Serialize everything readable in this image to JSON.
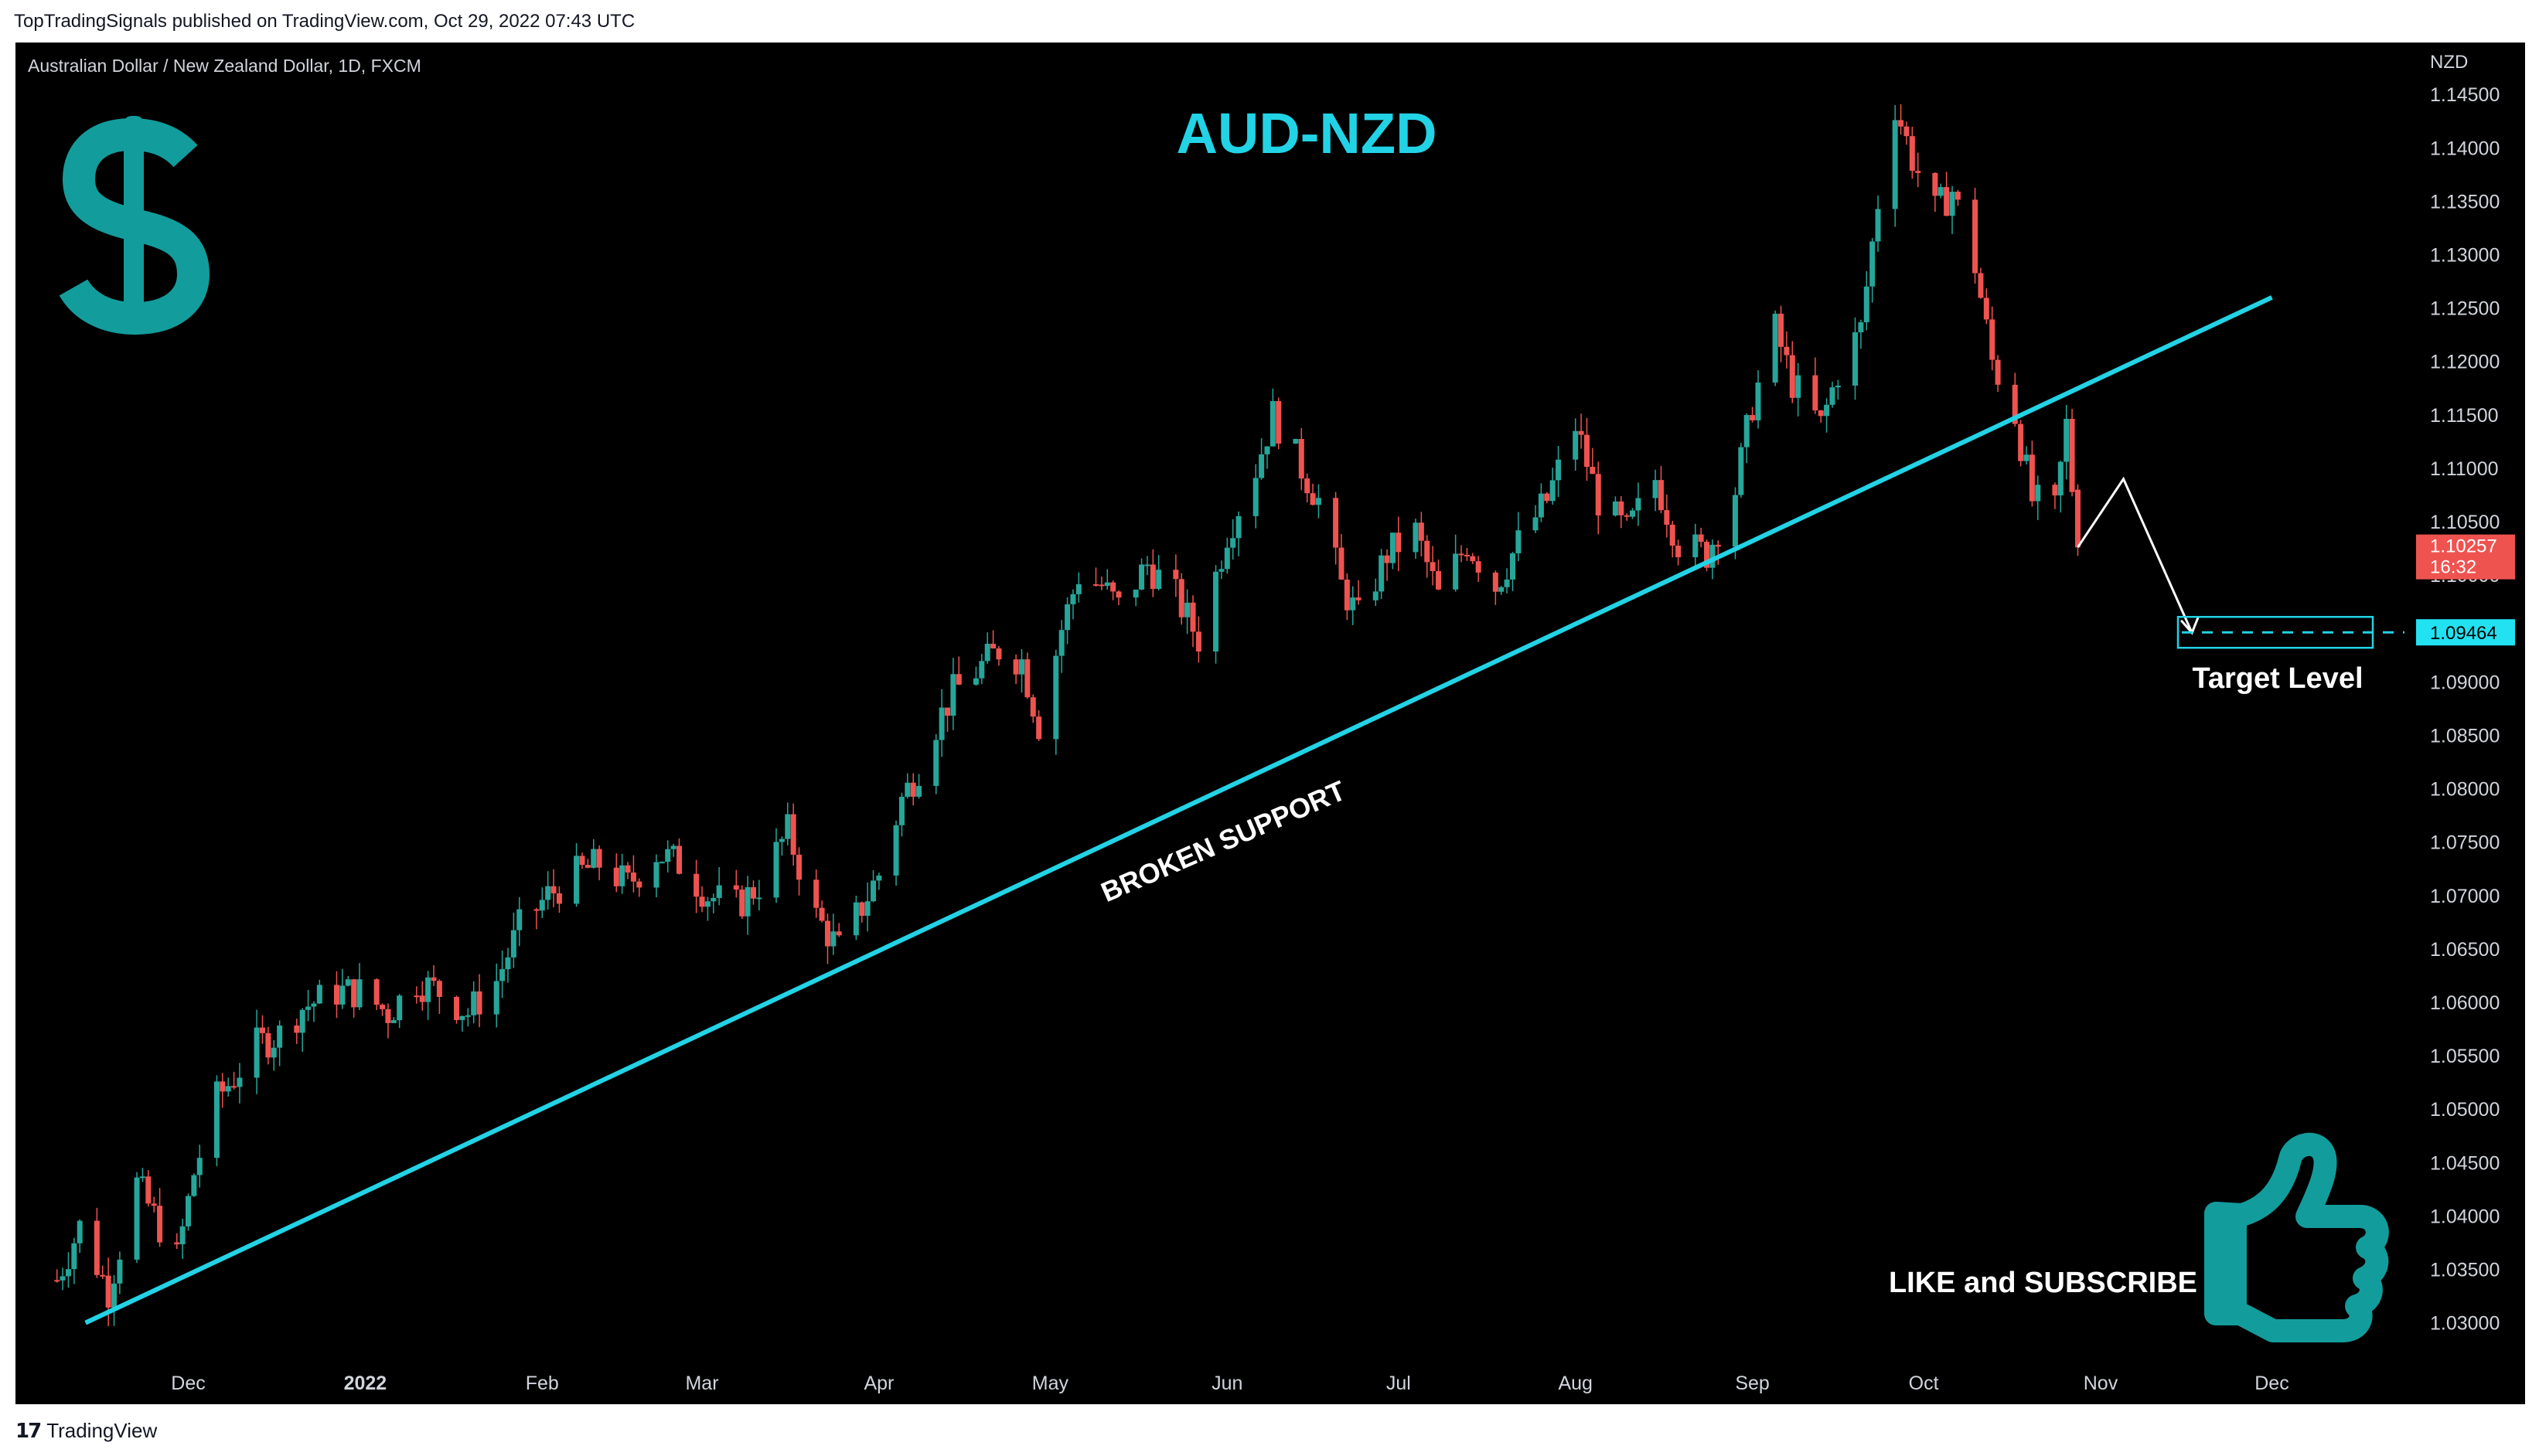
{
  "header": {
    "published_line": "TopTradingSignals published on TradingView.com, Oct 29, 2022 07:43 UTC",
    "symbol_line": "Australian Dollar / New Zealand Dollar, 1D, FXCM"
  },
  "footer": {
    "brand_label": "TradingView",
    "brand_icon": "tradingview-logo-icon"
  },
  "annotations": {
    "title": "AUD-NZD",
    "broken_support_label": "BROKEN SUPPORT",
    "target_label": "Target Level",
    "like_label": "LIKE and SUBSCRIBE",
    "dollar_icon": "dollar-sign-icon",
    "thumb_icon": "thumbs-up-icon"
  },
  "colors": {
    "background": "#000000",
    "up": "#26a69a",
    "down": "#ef5350",
    "line": "#22d3e6",
    "title": "#22d3e6",
    "teal_icon": "#139c9c",
    "axis_text": "#d1d4dc",
    "price_badge": "#ef5350",
    "target_badge": "#22e1f0"
  },
  "axis": {
    "currency_label": "NZD",
    "price_badge": {
      "value": "1.10257",
      "countdown": "16:32"
    },
    "target_badge": "1.09464"
  },
  "chart_data": {
    "type": "candlestick",
    "title": "AUD-NZD",
    "symbol": "Australian Dollar / New Zealand Dollar, 1D, FXCM",
    "ylabel": "NZD",
    "ylim": [
      1.0265,
      1.1495
    ],
    "y_ticks": [
      "1.14500",
      "1.14000",
      "1.13500",
      "1.13000",
      "1.12500",
      "1.12000",
      "1.11500",
      "1.11000",
      "1.10500",
      "1.10000",
      "1.09500",
      "1.09000",
      "1.08500",
      "1.08000",
      "1.07500",
      "1.07000",
      "1.06500",
      "1.06000",
      "1.05500",
      "1.05000",
      "1.04500",
      "1.04000",
      "1.03500",
      "1.03000"
    ],
    "x_ticks": [
      {
        "label": "Dec",
        "date": "2021-12-01"
      },
      {
        "label": "2022",
        "date": "2022-01-01"
      },
      {
        "label": "Feb",
        "date": "2022-02-01"
      },
      {
        "label": "Mar",
        "date": "2022-03-01"
      },
      {
        "label": "Apr",
        "date": "2022-04-01"
      },
      {
        "label": "May",
        "date": "2022-05-01"
      },
      {
        "label": "Jun",
        "date": "2022-06-01"
      },
      {
        "label": "Jul",
        "date": "2022-07-01"
      },
      {
        "label": "Aug",
        "date": "2022-08-01"
      },
      {
        "label": "Sep",
        "date": "2022-09-01"
      },
      {
        "label": "Oct",
        "date": "2022-10-01"
      },
      {
        "label": "Nov",
        "date": "2022-11-01"
      },
      {
        "label": "Dec",
        "date": "2022-12-01"
      }
    ],
    "close_series": [
      [
        "2021-11-08",
        1.034
      ],
      [
        "2021-11-12",
        1.039
      ],
      [
        "2021-11-17",
        1.033
      ],
      [
        "2021-11-22",
        1.043
      ],
      [
        "2021-11-26",
        1.039
      ],
      [
        "2021-11-29",
        1.036
      ],
      [
        "2021-12-02",
        1.044
      ],
      [
        "2021-12-06",
        1.051
      ],
      [
        "2021-12-09",
        1.053
      ],
      [
        "2021-12-13",
        1.056
      ],
      [
        "2021-12-17",
        1.057
      ],
      [
        "2021-12-21",
        1.0595
      ],
      [
        "2021-12-27",
        1.061
      ],
      [
        "2021-12-31",
        1.061
      ],
      [
        "2022-01-05",
        1.059
      ],
      [
        "2022-01-10",
        1.062
      ],
      [
        "2022-01-14",
        1.061
      ],
      [
        "2022-01-19",
        1.059
      ],
      [
        "2022-01-24",
        1.062
      ],
      [
        "2022-01-28",
        1.067
      ],
      [
        "2022-02-02",
        1.07
      ],
      [
        "2022-02-07",
        1.072
      ],
      [
        "2022-02-11",
        1.073
      ],
      [
        "2022-02-16",
        1.071
      ],
      [
        "2022-02-21",
        1.074
      ],
      [
        "2022-02-25",
        1.073
      ],
      [
        "2022-03-02",
        1.07
      ],
      [
        "2022-03-07",
        1.069
      ],
      [
        "2022-03-11",
        1.071
      ],
      [
        "2022-03-16",
        1.076
      ],
      [
        "2022-03-21",
        1.068
      ],
      [
        "2022-03-25",
        1.065
      ],
      [
        "2022-03-29",
        1.069
      ],
      [
        "2022-04-01",
        1.072
      ],
      [
        "2022-04-05",
        1.079
      ],
      [
        "2022-04-08",
        1.082
      ],
      [
        "2022-04-11",
        1.086
      ],
      [
        "2022-04-14",
        1.089
      ],
      [
        "2022-04-18",
        1.091
      ],
      [
        "2022-04-22",
        1.093
      ],
      [
        "2022-04-26",
        1.092
      ],
      [
        "2022-04-29",
        1.086
      ],
      [
        "2022-05-03",
        1.095
      ],
      [
        "2022-05-06",
        1.1
      ],
      [
        "2022-05-10",
        1.099
      ],
      [
        "2022-05-13",
        1.097
      ],
      [
        "2022-05-18",
        1.101
      ],
      [
        "2022-05-23",
        1.098
      ],
      [
        "2022-05-27",
        1.094
      ],
      [
        "2022-06-01",
        1.104
      ],
      [
        "2022-06-06",
        1.11
      ],
      [
        "2022-06-09",
        1.115
      ],
      [
        "2022-06-14",
        1.11
      ],
      [
        "2022-06-17",
        1.107
      ],
      [
        "2022-06-21",
        1.099
      ],
      [
        "2022-06-24",
        1.096
      ],
      [
        "2022-06-29",
        1.102
      ],
      [
        "2022-07-04",
        1.104
      ],
      [
        "2022-07-08",
        1.098
      ],
      [
        "2022-07-13",
        1.103
      ],
      [
        "2022-07-18",
        1.099
      ],
      [
        "2022-07-22",
        1.103
      ],
      [
        "2022-07-27",
        1.107
      ],
      [
        "2022-08-01",
        1.114
      ],
      [
        "2022-08-05",
        1.107
      ],
      [
        "2022-08-10",
        1.104
      ],
      [
        "2022-08-15",
        1.109
      ],
      [
        "2022-08-19",
        1.103
      ],
      [
        "2022-08-24",
        1.102
      ],
      [
        "2022-08-29",
        1.108
      ],
      [
        "2022-09-01",
        1.116
      ],
      [
        "2022-09-05",
        1.123
      ],
      [
        "2022-09-08",
        1.118
      ],
      [
        "2022-09-13",
        1.114
      ],
      [
        "2022-09-16",
        1.119
      ],
      [
        "2022-09-20",
        1.123
      ],
      [
        "2022-09-23",
        1.135
      ],
      [
        "2022-09-26",
        1.144
      ],
      [
        "2022-09-29",
        1.139
      ],
      [
        "2022-10-03",
        1.134
      ],
      [
        "2022-10-06",
        1.136
      ],
      [
        "2022-10-10",
        1.129
      ],
      [
        "2022-10-13",
        1.12
      ],
      [
        "2022-10-17",
        1.115
      ],
      [
        "2022-10-20",
        1.107
      ],
      [
        "2022-10-24",
        1.106
      ],
      [
        "2022-10-26",
        1.114
      ],
      [
        "2022-10-28",
        1.1026
      ]
    ],
    "trendline": {
      "label": "BROKEN SUPPORT",
      "from": [
        "2021-11-13",
        1.03
      ],
      "to": [
        "2022-12-01",
        1.126
      ]
    },
    "projection": [
      [
        "2022-10-28",
        1.1026
      ],
      [
        "2022-11-05",
        1.109
      ],
      [
        "2022-11-17",
        1.0946
      ]
    ],
    "target_level": {
      "label": "Target Level",
      "value": 1.09464
    },
    "last_price": {
      "value": 1.10257,
      "countdown": "16:32"
    }
  }
}
